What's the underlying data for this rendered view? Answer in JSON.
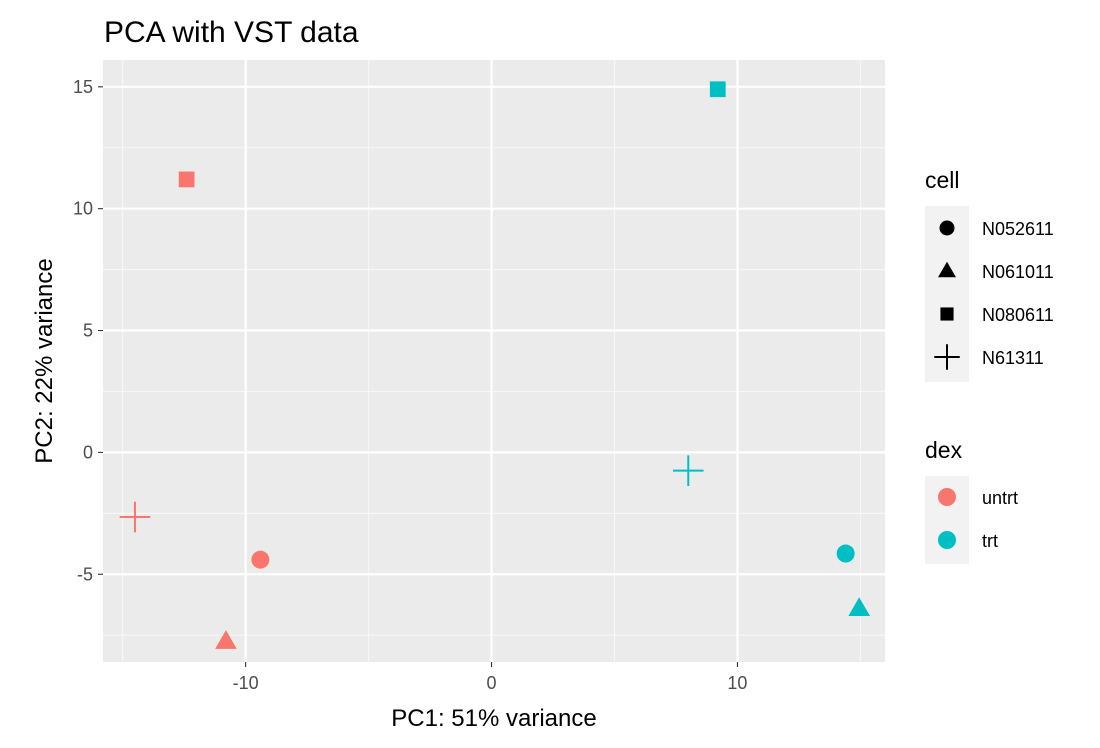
{
  "chart_data": {
    "type": "scatter",
    "title": "PCA with VST data",
    "xlabel": "PC1: 51% variance",
    "ylabel": "PC2: 22% variance",
    "xlim": [
      -15.8,
      16.0
    ],
    "ylim": [
      -8.6,
      16.1
    ],
    "xticks": [
      -10,
      0,
      10
    ],
    "xtick_labels": [
      "-10",
      "0",
      "10"
    ],
    "yticks": [
      -5,
      0,
      5,
      10,
      15
    ],
    "ytick_labels": [
      "-5",
      "0",
      "5",
      "10",
      "15"
    ],
    "grid": true,
    "background": "#ebebeb",
    "legend_position": "right",
    "points": [
      {
        "x": -12.4,
        "y": 11.2,
        "cell": "N080611",
        "dex": "untrt"
      },
      {
        "x": -14.5,
        "y": -2.65,
        "cell": "N61311",
        "dex": "untrt"
      },
      {
        "x": -9.4,
        "y": -4.4,
        "cell": "N052611",
        "dex": "untrt"
      },
      {
        "x": -10.8,
        "y": -7.75,
        "cell": "N061011",
        "dex": "untrt"
      },
      {
        "x": 9.2,
        "y": 14.9,
        "cell": "N080611",
        "dex": "trt"
      },
      {
        "x": 8.0,
        "y": -0.75,
        "cell": "N61311",
        "dex": "trt"
      },
      {
        "x": 14.4,
        "y": -4.15,
        "cell": "N052611",
        "dex": "trt"
      },
      {
        "x": 14.95,
        "y": -6.4,
        "cell": "N061011",
        "dex": "trt"
      }
    ],
    "legends": {
      "shape": {
        "title": "cell",
        "entries": [
          {
            "label": "N052611",
            "shape": "circle"
          },
          {
            "label": "N061011",
            "shape": "triangle"
          },
          {
            "label": "N080611",
            "shape": "square"
          },
          {
            "label": "N61311",
            "shape": "plus"
          }
        ]
      },
      "color": {
        "title": "dex",
        "entries": [
          {
            "label": "untrt",
            "color": "#f8766d"
          },
          {
            "label": "trt",
            "color": "#00bfc4"
          }
        ]
      }
    }
  }
}
